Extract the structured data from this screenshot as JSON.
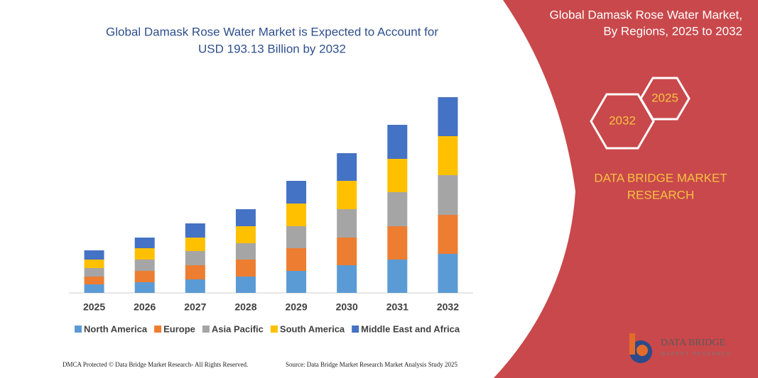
{
  "chart_data": {
    "type": "stacked-bar",
    "title": [
      "Global Damask Rose Water Market is Expected to Account for",
      "USD 193.13 Billion by 2032"
    ],
    "categories": [
      "2025",
      "2026",
      "2027",
      "2028",
      "2029",
      "2030",
      "2031",
      "2032"
    ],
    "series": [
      {
        "name": "North America",
        "color": "#5b9bd5",
        "values": [
          12,
          15,
          19,
          23,
          31,
          39,
          47,
          55
        ]
      },
      {
        "name": "Europe",
        "color": "#ed7d31",
        "values": [
          11,
          16,
          20,
          24,
          32,
          39,
          47,
          55
        ]
      },
      {
        "name": "Asia Pacific",
        "color": "#a5a5a5",
        "values": [
          12,
          16,
          20,
          23,
          31,
          40,
          48,
          56
        ]
      },
      {
        "name": "South America",
        "color": "#ffc000",
        "values": [
          12,
          16,
          19,
          24,
          32,
          40,
          47,
          55
        ]
      },
      {
        "name": "Middle East and Africa",
        "color": "#4472c4",
        "values": [
          13,
          15,
          20,
          24,
          32,
          39,
          48,
          55
        ]
      }
    ],
    "ylim": [
      0,
      276
    ],
    "legend": "bottom"
  },
  "side_panel": {
    "title": [
      "Global Damask Rose Water Market,",
      "By Regions, 2025 to 2032"
    ],
    "hexagons": [
      "2032",
      "2025"
    ],
    "brand": [
      "DATA BRIDGE MARKET",
      "RESEARCH"
    ]
  },
  "logo": {
    "name": "DATA BRIDGE",
    "tagline": "MARKET RESEARCH"
  },
  "footer": {
    "left": "DMCA Protected © Data Bridge Market Research-  All Rights Reserved.",
    "right": "Source: Data Bridge Market Research  Market Analysis Study 2025"
  }
}
